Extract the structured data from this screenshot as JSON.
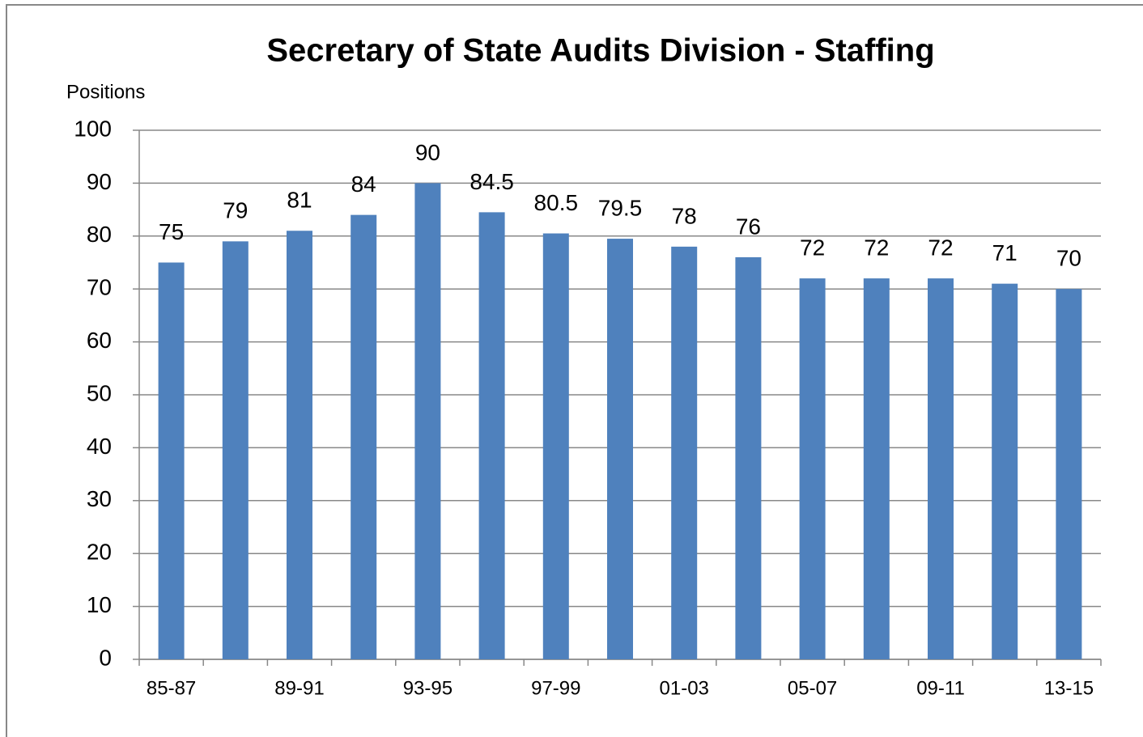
{
  "chart_data": {
    "type": "bar",
    "title": "Secretary of State Audits Division - Staffing",
    "y_label": "Positions",
    "categories": [
      "85-87",
      null,
      "89-91",
      null,
      "93-95",
      null,
      "97-99",
      null,
      "01-03",
      null,
      "05-07",
      null,
      "09-11",
      null,
      "13-15"
    ],
    "values": [
      75,
      79,
      81,
      84,
      90,
      84.5,
      80.5,
      79.5,
      78,
      76,
      72,
      72,
      72,
      71,
      70
    ],
    "color": "#4f81bd",
    "ylim": [
      0,
      100
    ],
    "yticks": [
      0,
      10,
      20,
      30,
      40,
      50,
      60,
      70,
      80,
      90,
      100
    ],
    "grid": true
  }
}
